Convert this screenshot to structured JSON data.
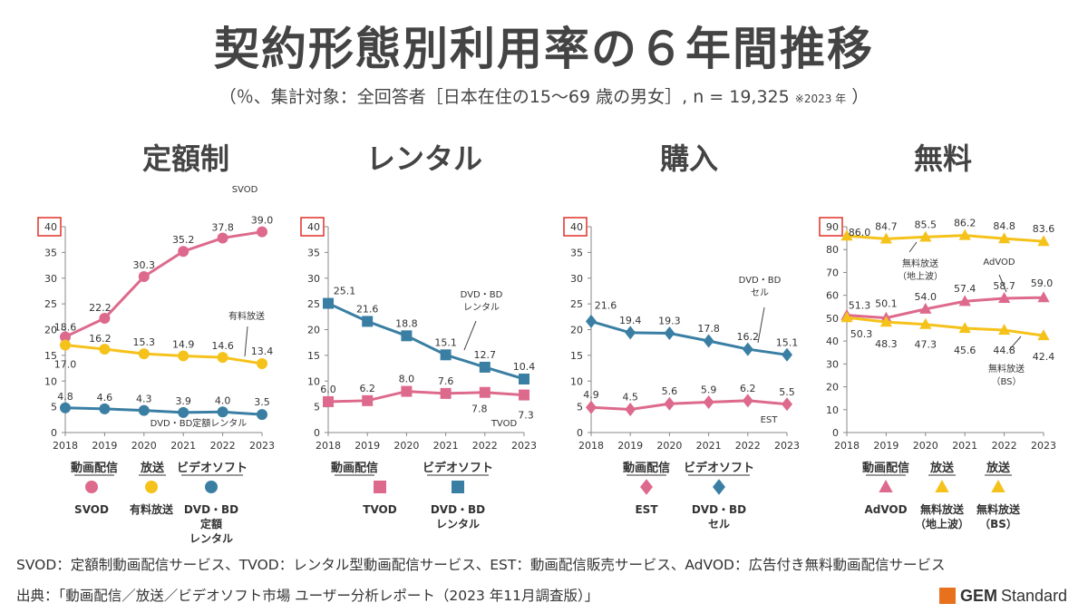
{
  "title": "契約形態別利用率の６年間推移",
  "subtitle": {
    "main": "（％、集計対象：全回答者［日本在住の15～69 歳の男女］, n = 19,325",
    "small": "※2023 年",
    "close": "）"
  },
  "footnote": "SVOD：定額制動画配信サービス、TVOD：レンタル型動画配信サービス、EST：動画配信販売サービス、AdVOD：広告付き無料動画配信サービス",
  "source": "出典：「動画配信／放送／ビデオソフト市場 ユーザー分析レポート（2023 年11月調査版）」",
  "logo": {
    "gem": "GEM",
    "standard": "Standard",
    "color": "#e8711e"
  },
  "colors": {
    "pink": "#dd6a8c",
    "yellow": "#f5c21b",
    "blue": "#3a7fa3",
    "axis_highlight": "#e0302a"
  },
  "chart_data": [
    {
      "type": "line",
      "title": "定額制",
      "x": [
        2018,
        2019,
        2020,
        2021,
        2022,
        2023
      ],
      "ylim": [
        0,
        40
      ],
      "yticks": [
        0,
        5,
        10,
        15,
        20,
        25,
        30,
        35,
        40
      ],
      "series": [
        {
          "name": "SVOD",
          "color": "#dd6a8c",
          "marker": "circle",
          "values": [
            18.6,
            22.2,
            30.3,
            35.2,
            37.8,
            39.0
          ],
          "line_label": "SVOD"
        },
        {
          "name": "有料放送",
          "color": "#f5c21b",
          "marker": "circle",
          "values": [
            17.0,
            16.2,
            15.3,
            14.9,
            14.6,
            13.4
          ],
          "line_label": "有料放送"
        },
        {
          "name": "DVD・BD定額レンタル",
          "color": "#3a7fa3",
          "marker": "circle",
          "values": [
            4.8,
            4.6,
            4.3,
            3.9,
            4.0,
            3.5
          ],
          "line_label": "DVD・BD定額レンタル"
        }
      ],
      "legend": {
        "groups": [
          "動画配信",
          "放送",
          "ビデオソフト"
        ],
        "items": [
          {
            "label": [
              "SVOD"
            ],
            "color": "#dd6a8c",
            "marker": "circle"
          },
          {
            "label": [
              "有料放送"
            ],
            "color": "#f5c21b",
            "marker": "circle"
          },
          {
            "label": [
              "DVD・BD",
              "定額",
              "レンタル"
            ],
            "color": "#3a7fa3",
            "marker": "circle"
          }
        ]
      }
    },
    {
      "type": "line",
      "title": "レンタル",
      "x": [
        2018,
        2019,
        2020,
        2021,
        2022,
        2023
      ],
      "ylim": [
        0,
        40
      ],
      "yticks": [
        0,
        5,
        10,
        15,
        20,
        25,
        30,
        35,
        40
      ],
      "series": [
        {
          "name": "DVD・BDレンタル",
          "color": "#3a7fa3",
          "marker": "square",
          "values": [
            25.1,
            21.6,
            18.8,
            15.1,
            12.7,
            10.4
          ],
          "line_label": [
            "DVD・BD",
            "レンタル"
          ]
        },
        {
          "name": "TVOD",
          "color": "#dd6a8c",
          "marker": "square",
          "values": [
            6.0,
            6.2,
            8.0,
            7.6,
            7.8,
            7.3
          ],
          "line_label": "TVOD"
        }
      ],
      "legend": {
        "groups": [
          "動画配信",
          "ビデオソフト"
        ],
        "items": [
          {
            "label": [
              "TVOD"
            ],
            "color": "#dd6a8c",
            "marker": "square"
          },
          {
            "label": [
              "DVD・BD",
              "レンタル"
            ],
            "color": "#3a7fa3",
            "marker": "square"
          }
        ]
      }
    },
    {
      "type": "line",
      "title": "購入",
      "x": [
        2018,
        2019,
        2020,
        2021,
        2022,
        2023
      ],
      "ylim": [
        0,
        40
      ],
      "yticks": [
        0,
        5,
        10,
        15,
        20,
        25,
        30,
        35,
        40
      ],
      "series": [
        {
          "name": "DVD・BDセル",
          "color": "#3a7fa3",
          "marker": "diamond",
          "values": [
            21.6,
            19.4,
            19.3,
            17.8,
            16.2,
            15.1
          ],
          "line_label": [
            "DVD・BD",
            "セル"
          ]
        },
        {
          "name": "EST",
          "color": "#dd6a8c",
          "marker": "diamond",
          "values": [
            4.9,
            4.5,
            5.6,
            5.9,
            6.2,
            5.5
          ],
          "line_label": "EST"
        }
      ],
      "legend": {
        "groups": [
          "動画配信",
          "ビデオソフト"
        ],
        "items": [
          {
            "label": [
              "EST"
            ],
            "color": "#dd6a8c",
            "marker": "diamond"
          },
          {
            "label": [
              "DVD・BD",
              "セル"
            ],
            "color": "#3a7fa3",
            "marker": "diamond"
          }
        ]
      }
    },
    {
      "type": "line",
      "title": "無料",
      "x": [
        2018,
        2019,
        2020,
        2021,
        2022,
        2023
      ],
      "ylim": [
        0,
        90
      ],
      "yticks": [
        0,
        10,
        20,
        30,
        40,
        50,
        60,
        70,
        80,
        90
      ],
      "series": [
        {
          "name": "無料放送（地上波）",
          "color": "#f5c21b",
          "marker": "triangle",
          "values": [
            86.0,
            84.7,
            85.5,
            86.2,
            84.8,
            83.6
          ],
          "line_label": [
            "無料放送",
            "（地上波）"
          ]
        },
        {
          "name": "AdVOD",
          "color": "#dd6a8c",
          "marker": "triangle",
          "values": [
            51.3,
            50.1,
            54.0,
            57.4,
            58.7,
            59.0
          ],
          "line_label": "AdVOD"
        },
        {
          "name": "無料放送（BS）",
          "color": "#f5c21b",
          "marker": "triangle",
          "values": [
            50.3,
            48.3,
            47.3,
            45.6,
            44.8,
            42.4
          ],
          "line_label": [
            "無料放送",
            "（BS）"
          ]
        }
      ],
      "legend": {
        "groups": [
          "動画配信",
          "放送",
          "放送"
        ],
        "items": [
          {
            "label": [
              "AdVOD"
            ],
            "color": "#dd6a8c",
            "marker": "triangle"
          },
          {
            "label": [
              "無料放送",
              "（地上波）"
            ],
            "color": "#f5c21b",
            "marker": "triangle"
          },
          {
            "label": [
              "無料放送",
              "（BS）"
            ],
            "color": "#f5c21b",
            "marker": "triangle"
          }
        ]
      }
    }
  ]
}
